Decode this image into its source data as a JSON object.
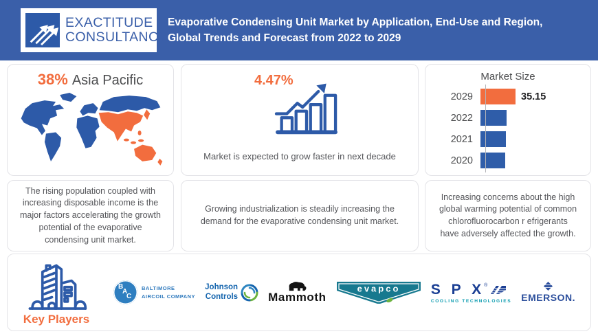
{
  "header": {
    "logo": {
      "line1": "EXACTITUDE",
      "line2": "CONSULTANCY"
    },
    "title": "Evaporative Condensing Unit Market by Application, End-Use and Region,\nGlobal Trends and Forecast from 2022 to 2029"
  },
  "highlights": {
    "region": {
      "percent": "38%",
      "label": "Asia Pacific"
    },
    "growth": {
      "percent": "4.47%",
      "caption": "Market is expected to grow faster in next decade"
    }
  },
  "chart_data": {
    "type": "bar",
    "orientation": "horizontal",
    "title": "Market Size",
    "categories": [
      "2029",
      "2022",
      "2021",
      "2020"
    ],
    "values": [
      35.15,
      26.2,
      25.5,
      24.6
    ],
    "value_labels": [
      "35.15",
      "",
      "",
      ""
    ],
    "bar_colors": [
      "#f26d3e",
      "#2f5da9",
      "#2f5da9",
      "#2f5da9"
    ],
    "xlim": [
      0,
      35.15
    ],
    "grid": false,
    "legend": false
  },
  "facts": [
    "The rising population coupled with increasing disposable income is the major factors accelerating the growth potential of the evaporative condensing unit market.",
    "Growing industrialization is steadily increasing the demand for the evaporative condensing unit market.",
    "Increasing concerns about the high global warming potential of common chlorofluorocarbon r efrigerants have adversely affected the growth."
  ],
  "key_players": {
    "label": "Key Players",
    "companies": [
      {
        "name": "Baltimore Aircoil Company",
        "abbr": "BAC",
        "line1": "BALTIMORE",
        "line2": "AIRCOIL COMPANY"
      },
      {
        "name": "Johnson Controls",
        "line1": "Johnson",
        "line2": "Controls"
      },
      {
        "name": "Mammoth",
        "wordmark": "Mammoth"
      },
      {
        "name": "Evapco",
        "wordmark": "evapco"
      },
      {
        "name": "SPX Cooling Technologies",
        "wordmark": "S P X",
        "reg": "®",
        "subtext": "COOLING TECHNOLOGIES"
      },
      {
        "name": "Emerson",
        "wordmark": "EMERSON."
      }
    ]
  },
  "icons": {
    "logo-arrows-icon": "three diagonal arrows pointing up-right",
    "growth-chart-icon": "rising bar chart with zigzag up arrow",
    "world-map": "world map with Asia Pacific highlighted",
    "key-players-icon": "office buildings outline"
  },
  "colors": {
    "header_blue": "#3a5fa9",
    "accent_orange": "#f26d3e",
    "primary_blue": "#2d5aa8",
    "body_text": "#55565a",
    "evapco_teal": "#17798f"
  }
}
